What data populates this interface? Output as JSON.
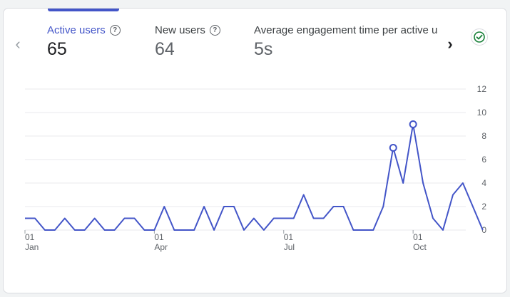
{
  "metrics": [
    {
      "label": "Active users",
      "value": "65",
      "active": true
    },
    {
      "label": "New users",
      "value": "64",
      "active": false
    },
    {
      "label": "Average engagement time per active us",
      "value": "5s",
      "active": false
    }
  ],
  "colors": {
    "accent": "#4355c8",
    "success": "#188038"
  },
  "icons": {
    "prev": "chevron-left-icon",
    "next": "chevron-right-icon",
    "status": "check-circle-icon",
    "help": "help-icon"
  },
  "chart_data": {
    "type": "line",
    "y_ticks": [
      "0",
      "2",
      "4",
      "6",
      "8",
      "10",
      "12"
    ],
    "ylim": [
      0,
      12
    ],
    "x_ticks": [
      {
        "index": 0,
        "day": "01",
        "month": "Jan"
      },
      {
        "index": 13,
        "day": "01",
        "month": "Apr"
      },
      {
        "index": 26,
        "day": "01",
        "month": "Jul"
      },
      {
        "index": 39,
        "day": "01",
        "month": "Oct"
      }
    ],
    "series": [
      {
        "values": [
          1,
          1,
          0,
          0,
          1,
          0,
          0,
          1,
          0,
          0,
          1,
          1,
          0,
          0,
          2,
          0,
          0,
          0,
          2,
          0,
          2,
          2,
          0,
          1,
          0,
          1,
          1,
          1,
          3,
          1,
          1,
          2,
          2,
          0,
          0,
          0,
          2,
          7,
          4,
          9,
          4,
          1,
          0,
          3,
          4,
          2,
          0
        ],
        "markers": [
          37,
          39
        ]
      }
    ],
    "grid": true
  }
}
